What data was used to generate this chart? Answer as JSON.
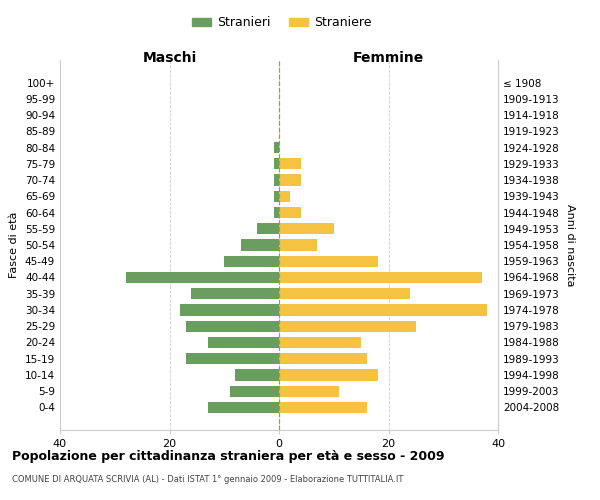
{
  "age_groups": [
    "100+",
    "95-99",
    "90-94",
    "85-89",
    "80-84",
    "75-79",
    "70-74",
    "65-69",
    "60-64",
    "55-59",
    "50-54",
    "45-49",
    "40-44",
    "35-39",
    "30-34",
    "25-29",
    "20-24",
    "15-19",
    "10-14",
    "5-9",
    "0-4"
  ],
  "birth_years": [
    "≤ 1908",
    "1909-1913",
    "1914-1918",
    "1919-1923",
    "1924-1928",
    "1929-1933",
    "1934-1938",
    "1939-1943",
    "1944-1948",
    "1949-1953",
    "1954-1958",
    "1959-1963",
    "1964-1968",
    "1969-1973",
    "1974-1978",
    "1979-1983",
    "1984-1988",
    "1989-1993",
    "1994-1998",
    "1999-2003",
    "2004-2008"
  ],
  "males": [
    0,
    0,
    0,
    0,
    1,
    1,
    1,
    1,
    1,
    4,
    7,
    10,
    28,
    16,
    18,
    17,
    13,
    17,
    8,
    9,
    13
  ],
  "females": [
    0,
    0,
    0,
    0,
    0,
    4,
    4,
    2,
    4,
    10,
    7,
    18,
    37,
    24,
    38,
    25,
    15,
    16,
    18,
    11,
    16
  ],
  "male_color": "#6a9e5e",
  "female_color": "#f5c242",
  "grid_color": "#cccccc",
  "center_line_color": "#999966",
  "background_color": "#ffffff",
  "title": "Popolazione per cittadinanza straniera per età e sesso - 2009",
  "subtitle": "COMUNE DI ARQUATA SCRIVIA (AL) - Dati ISTAT 1° gennaio 2009 - Elaborazione TUTTITALIA.IT",
  "xlabel_left": "Maschi",
  "xlabel_right": "Femmine",
  "ylabel_left": "Fasce di età",
  "ylabel_right": "Anni di nascita",
  "legend_male": "Stranieri",
  "legend_female": "Straniere",
  "xlim": 40,
  "figsize": [
    6.0,
    5.0
  ],
  "dpi": 100
}
